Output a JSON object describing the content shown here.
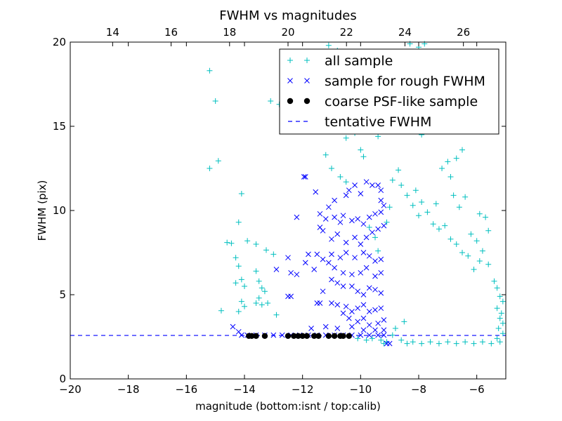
{
  "chart_data": {
    "type": "scatter",
    "title": "FWHM vs magnitudes",
    "xlabel": "magnitude (bottom:isnt / top:calib)",
    "ylabel": "FWHM (pix)",
    "xlim": [
      -20,
      -5
    ],
    "ylim": [
      0,
      20
    ],
    "x_ticks": [
      "−20",
      "−18",
      "−16",
      "−14",
      "−12",
      "−10",
      "−8",
      "−6"
    ],
    "x_tick_values": [
      -20,
      -18,
      -16,
      -14,
      -12,
      -10,
      -8,
      -6
    ],
    "y_ticks": [
      "0",
      "5",
      "10",
      "15",
      "20"
    ],
    "y_tick_values": [
      0,
      5,
      10,
      15,
      20
    ],
    "top_xlim": [
      12.55,
      27.45
    ],
    "top_x_ticks": [
      "14",
      "16",
      "18",
      "20",
      "22",
      "24",
      "26"
    ],
    "top_x_tick_values": [
      14,
      16,
      18,
      20,
      22,
      24,
      26
    ],
    "grid": false,
    "legend_position": "top-right",
    "legend": [
      {
        "label": "all sample",
        "marker": "plus",
        "color": "#00bfbf"
      },
      {
        "label": "sample for rough FWHM",
        "marker": "x",
        "color": "#0000ff"
      },
      {
        "label": "coarse PSF-like sample",
        "marker": "dot",
        "color": "#000000"
      },
      {
        "label": "tentative FWHM",
        "marker": "dashed-line",
        "color": "#0000ff"
      }
    ],
    "tentative_fwhm": 2.58,
    "series": [
      {
        "name": "all sample",
        "marker": "plus",
        "color": "#00bfbf",
        "points": [
          [
            -15.2,
            18.3
          ],
          [
            -15.0,
            16.5
          ],
          [
            -15.2,
            12.5
          ],
          [
            -14.9,
            12.95
          ],
          [
            -14.6,
            8.1
          ],
          [
            -14.45,
            8.05
          ],
          [
            -14.1,
            11
          ],
          [
            -14.2,
            9.3
          ],
          [
            -13.9,
            8.2
          ],
          [
            -14.3,
            7.2
          ],
          [
            -14.2,
            6.7
          ],
          [
            -14.1,
            5.9
          ],
          [
            -14.3,
            5.7
          ],
          [
            -14.0,
            5.5
          ],
          [
            -14.1,
            4.6
          ],
          [
            -14.0,
            4.3
          ],
          [
            -14.2,
            4.0
          ],
          [
            -14.8,
            4.05
          ],
          [
            -13.6,
            6.4
          ],
          [
            -13.5,
            5.8
          ],
          [
            -13.4,
            5.4
          ],
          [
            -13.3,
            5.2
          ],
          [
            -13.6,
            4.5
          ],
          [
            -13.4,
            4.4
          ],
          [
            -13.2,
            4.5
          ],
          [
            -13.5,
            4.8
          ],
          [
            -13.6,
            8.0
          ],
          [
            -13.25,
            7.65
          ],
          [
            -13.0,
            7.4
          ],
          [
            -12.9,
            3.8
          ],
          [
            -13.1,
            16.5
          ],
          [
            -12.8,
            16.3
          ],
          [
            -12.6,
            16.6
          ],
          [
            -12.3,
            16.1
          ],
          [
            -12.0,
            15.0
          ],
          [
            -11.6,
            15.5
          ],
          [
            -11.3,
            14.9
          ],
          [
            -11.0,
            14.7
          ],
          [
            -10.5,
            14.3
          ],
          [
            -10.2,
            14.6
          ],
          [
            -11.2,
            13.3
          ],
          [
            -11.0,
            12.5
          ],
          [
            -10.7,
            12.0
          ],
          [
            -10.5,
            11.7
          ],
          [
            -10.0,
            13.6
          ],
          [
            -9.9,
            13.2
          ],
          [
            -9.6,
            14.8
          ],
          [
            -9.4,
            14.4
          ],
          [
            -11.1,
            19.8
          ],
          [
            -10.8,
            19.5
          ],
          [
            -11.8,
            17.2
          ],
          [
            -10.6,
            17.6
          ],
          [
            -8.3,
            19.9
          ],
          [
            -7.8,
            19.9
          ],
          [
            -8.0,
            19.7
          ],
          [
            -7.3,
            18.1
          ],
          [
            -7.8,
            17.2
          ],
          [
            -8.6,
            16.6
          ],
          [
            -7.9,
            14.5
          ],
          [
            -6.5,
            13.6
          ],
          [
            -6.7,
            13.1
          ],
          [
            -7.0,
            12.9
          ],
          [
            -7.2,
            12.5
          ],
          [
            -6.9,
            12.0
          ],
          [
            -6.4,
            10.8
          ],
          [
            -6.8,
            10.9
          ],
          [
            -6.6,
            10.2
          ],
          [
            -5.9,
            9.8
          ],
          [
            -5.7,
            9.6
          ],
          [
            -5.6,
            8.8
          ],
          [
            -6.0,
            8.2
          ],
          [
            -5.8,
            7.6
          ],
          [
            -6.2,
            8.6
          ],
          [
            -5.9,
            7.0
          ],
          [
            -5.6,
            6.8
          ],
          [
            -9.7,
            9.0
          ],
          [
            -9.5,
            8.4
          ],
          [
            -9.4,
            7.6
          ],
          [
            -9.1,
            9.3
          ],
          [
            -9.0,
            10.2
          ],
          [
            -8.9,
            11.8
          ],
          [
            -8.7,
            12.4
          ],
          [
            -8.6,
            11.5
          ],
          [
            -8.4,
            10.9
          ],
          [
            -8.2,
            10.3
          ],
          [
            -8.1,
            11.2
          ],
          [
            -8.0,
            9.7
          ],
          [
            -7.9,
            10.5
          ],
          [
            -7.7,
            9.9
          ],
          [
            -7.5,
            9.2
          ],
          [
            -7.4,
            10.4
          ],
          [
            -7.3,
            8.9
          ],
          [
            -7.1,
            9.1
          ],
          [
            -6.9,
            8.3
          ],
          [
            -6.7,
            8.0
          ],
          [
            -6.5,
            7.5
          ],
          [
            -6.3,
            7.3
          ],
          [
            -6.1,
            6.5
          ],
          [
            -5.4,
            5.8
          ],
          [
            -5.3,
            5.4
          ],
          [
            -5.2,
            4.9
          ],
          [
            -5.1,
            4.6
          ],
          [
            -5.3,
            4.2
          ],
          [
            -5.15,
            3.9
          ],
          [
            -5.2,
            3.6
          ],
          [
            -5.1,
            3.3
          ],
          [
            -5.25,
            3.0
          ],
          [
            -5.1,
            2.7
          ],
          [
            -5.3,
            2.4
          ],
          [
            -5.2,
            2.2
          ],
          [
            -8.6,
            2.3
          ],
          [
            -8.4,
            2.1
          ],
          [
            -8.2,
            2.2
          ],
          [
            -7.9,
            2.1
          ],
          [
            -7.6,
            2.2
          ],
          [
            -7.3,
            2.1
          ],
          [
            -7.0,
            2.2
          ],
          [
            -6.7,
            2.1
          ],
          [
            -6.4,
            2.2
          ],
          [
            -6.1,
            2.1
          ],
          [
            -5.8,
            2.2
          ],
          [
            -5.5,
            2.1
          ],
          [
            -9.2,
            2.1
          ],
          [
            -9.1,
            2.2
          ],
          [
            -10.1,
            2.4
          ],
          [
            -9.8,
            2.3
          ],
          [
            -9.6,
            2.4
          ],
          [
            -9.3,
            2.3
          ],
          [
            -8.9,
            2.6
          ],
          [
            -8.8,
            3.0
          ],
          [
            -8.5,
            3.4
          ]
        ]
      },
      {
        "name": "sample for rough FWHM",
        "marker": "x",
        "color": "#0000ff",
        "points": [
          [
            -14.4,
            3.1
          ],
          [
            -14.2,
            2.8
          ],
          [
            -14.1,
            2.6
          ],
          [
            -13.9,
            2.6
          ],
          [
            -13.6,
            2.6
          ],
          [
            -13.3,
            2.6
          ],
          [
            -13.0,
            2.6
          ],
          [
            -12.7,
            2.6
          ],
          [
            -12.4,
            2.6
          ],
          [
            -12.1,
            2.6
          ],
          [
            -11.8,
            2.6
          ],
          [
            -11.5,
            2.6
          ],
          [
            -11.2,
            2.6
          ],
          [
            -10.9,
            2.6
          ],
          [
            -10.6,
            2.6
          ],
          [
            -10.3,
            2.6
          ],
          [
            -10.0,
            2.6
          ],
          [
            -9.7,
            2.6
          ],
          [
            -9.4,
            2.6
          ],
          [
            -9.2,
            2.6
          ],
          [
            -11.95,
            12.0
          ],
          [
            -11.9,
            12.0
          ],
          [
            -11.55,
            11.1
          ],
          [
            -11.1,
            10.2
          ],
          [
            -10.9,
            10.6
          ],
          [
            -10.5,
            10.9
          ],
          [
            -10.4,
            11.2
          ],
          [
            -10.2,
            11.5
          ],
          [
            -10.0,
            11.0
          ],
          [
            -9.8,
            11.7
          ],
          [
            -9.6,
            11.5
          ],
          [
            -9.4,
            11.5
          ],
          [
            -9.3,
            11.2
          ],
          [
            -12.2,
            9.6
          ],
          [
            -11.4,
            9.8
          ],
          [
            -11.2,
            9.5
          ],
          [
            -10.9,
            9.6
          ],
          [
            -10.6,
            9.7
          ],
          [
            -10.7,
            9.3
          ],
          [
            -10.3,
            9.4
          ],
          [
            -10.1,
            9.5
          ],
          [
            -9.9,
            9.2
          ],
          [
            -9.7,
            9.6
          ],
          [
            -9.5,
            9.8
          ],
          [
            -9.3,
            9.9
          ],
          [
            -9.2,
            10.3
          ],
          [
            -9.3,
            10.6
          ],
          [
            -11.4,
            9.0
          ],
          [
            -11.3,
            8.8
          ],
          [
            -11.0,
            8.3
          ],
          [
            -10.8,
            8.6
          ],
          [
            -10.5,
            8.1
          ],
          [
            -10.2,
            8.4
          ],
          [
            -10.0,
            8.0
          ],
          [
            -9.8,
            8.4
          ],
          [
            -9.6,
            8.7
          ],
          [
            -9.4,
            8.9
          ],
          [
            -9.2,
            9.1
          ],
          [
            -10.5,
            7.5
          ],
          [
            -10.2,
            7.2
          ],
          [
            -9.9,
            7.5
          ],
          [
            -9.7,
            7.3
          ],
          [
            -9.5,
            7.0
          ],
          [
            -9.3,
            7.1
          ],
          [
            -10.7,
            7.2
          ],
          [
            -11.0,
            7.4
          ],
          [
            -11.3,
            7.1
          ],
          [
            -11.5,
            7.4
          ],
          [
            -11.8,
            7.4
          ],
          [
            -12.5,
            7.2
          ],
          [
            -12.4,
            6.3
          ],
          [
            -12.2,
            6.2
          ],
          [
            -12.9,
            6.5
          ],
          [
            -11.9,
            6.9
          ],
          [
            -11.6,
            6.5
          ],
          [
            -11.1,
            6.9
          ],
          [
            -10.9,
            6.6
          ],
          [
            -10.6,
            6.3
          ],
          [
            -10.3,
            6.2
          ],
          [
            -10.0,
            6.3
          ],
          [
            -9.8,
            6.6
          ],
          [
            -9.5,
            6.1
          ],
          [
            -9.3,
            6.3
          ],
          [
            -11.0,
            5.9
          ],
          [
            -10.8,
            5.7
          ],
          [
            -10.6,
            5.5
          ],
          [
            -10.3,
            5.5
          ],
          [
            -10.1,
            5.2
          ],
          [
            -9.9,
            5.0
          ],
          [
            -9.7,
            5.4
          ],
          [
            -9.5,
            5.3
          ],
          [
            -9.3,
            5.1
          ],
          [
            -11.3,
            5.2
          ],
          [
            -11.5,
            4.5
          ],
          [
            -11.4,
            4.5
          ],
          [
            -11.0,
            4.5
          ],
          [
            -10.8,
            4.4
          ],
          [
            -10.5,
            4.3
          ],
          [
            -10.3,
            4.0
          ],
          [
            -10.1,
            4.2
          ],
          [
            -9.9,
            4.4
          ],
          [
            -9.7,
            4.0
          ],
          [
            -9.5,
            4.1
          ],
          [
            -9.3,
            4.2
          ],
          [
            -12.5,
            4.9
          ],
          [
            -12.4,
            4.9
          ],
          [
            -10.6,
            3.9
          ],
          [
            -10.4,
            3.6
          ],
          [
            -10.1,
            3.4
          ],
          [
            -9.9,
            3.6
          ],
          [
            -9.7,
            3.2
          ],
          [
            -9.4,
            3.3
          ],
          [
            -9.2,
            3.5
          ],
          [
            -11.7,
            3.0
          ],
          [
            -11.2,
            3.1
          ],
          [
            -10.8,
            3.0
          ],
          [
            -10.3,
            3.1
          ],
          [
            -9.9,
            2.9
          ],
          [
            -9.5,
            2.9
          ],
          [
            -9.2,
            2.9
          ],
          [
            -9.1,
            2.1
          ],
          [
            -9.0,
            2.1
          ]
        ]
      },
      {
        "name": "coarse PSF-like sample",
        "marker": "dot",
        "color": "#000000",
        "points": [
          [
            -13.85,
            2.55
          ],
          [
            -13.75,
            2.55
          ],
          [
            -13.6,
            2.55
          ],
          [
            -13.3,
            2.55
          ],
          [
            -12.5,
            2.55
          ],
          [
            -12.3,
            2.55
          ],
          [
            -12.15,
            2.55
          ],
          [
            -12.0,
            2.55
          ],
          [
            -11.85,
            2.55
          ],
          [
            -11.6,
            2.55
          ],
          [
            -11.45,
            2.55
          ],
          [
            -11.1,
            2.55
          ],
          [
            -10.9,
            2.55
          ],
          [
            -10.7,
            2.55
          ],
          [
            -10.6,
            2.55
          ],
          [
            -10.4,
            2.55
          ]
        ]
      }
    ]
  }
}
